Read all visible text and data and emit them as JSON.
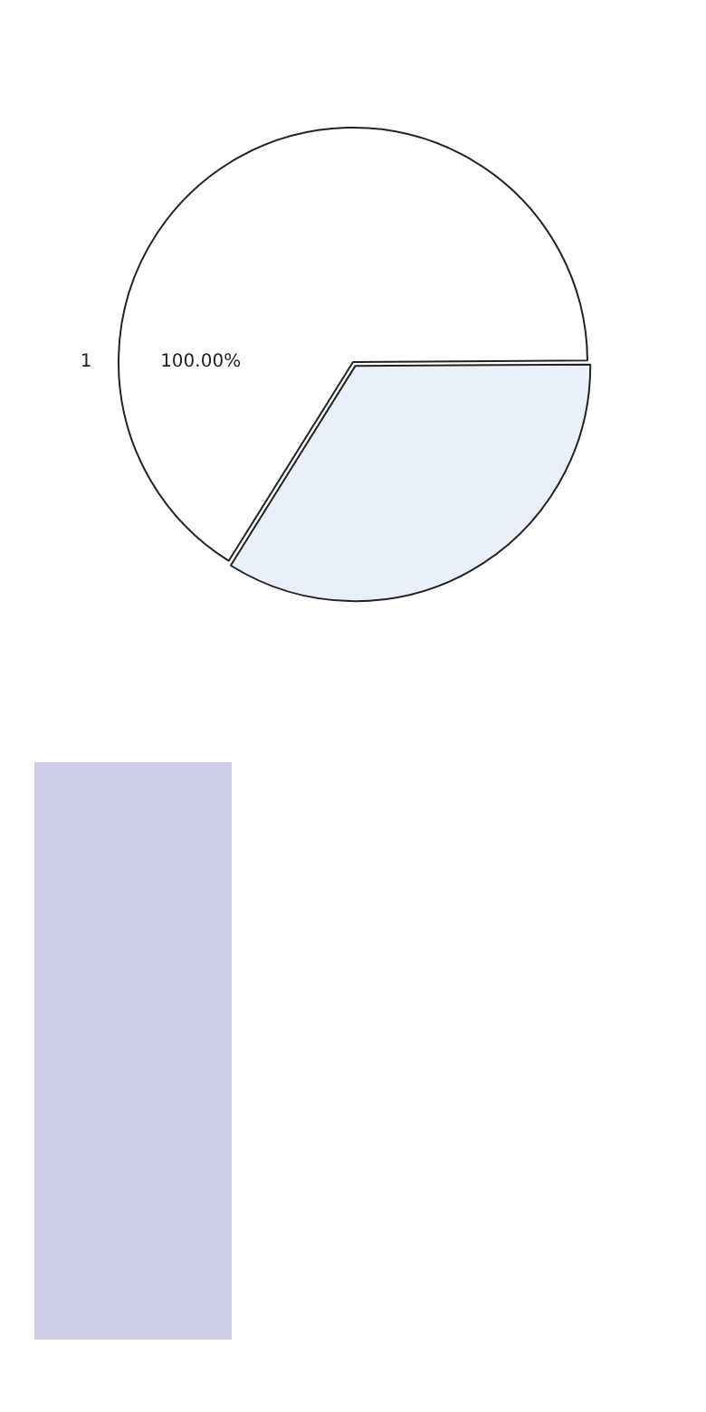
{
  "chart_data": {
    "type": "pie",
    "categories": [
      "1",
      null
    ],
    "values": [
      66,
      34
    ],
    "colors": [
      "#ffffff",
      "#eaf0fb"
    ],
    "annotations": [
      "100.00%"
    ]
  }
}
